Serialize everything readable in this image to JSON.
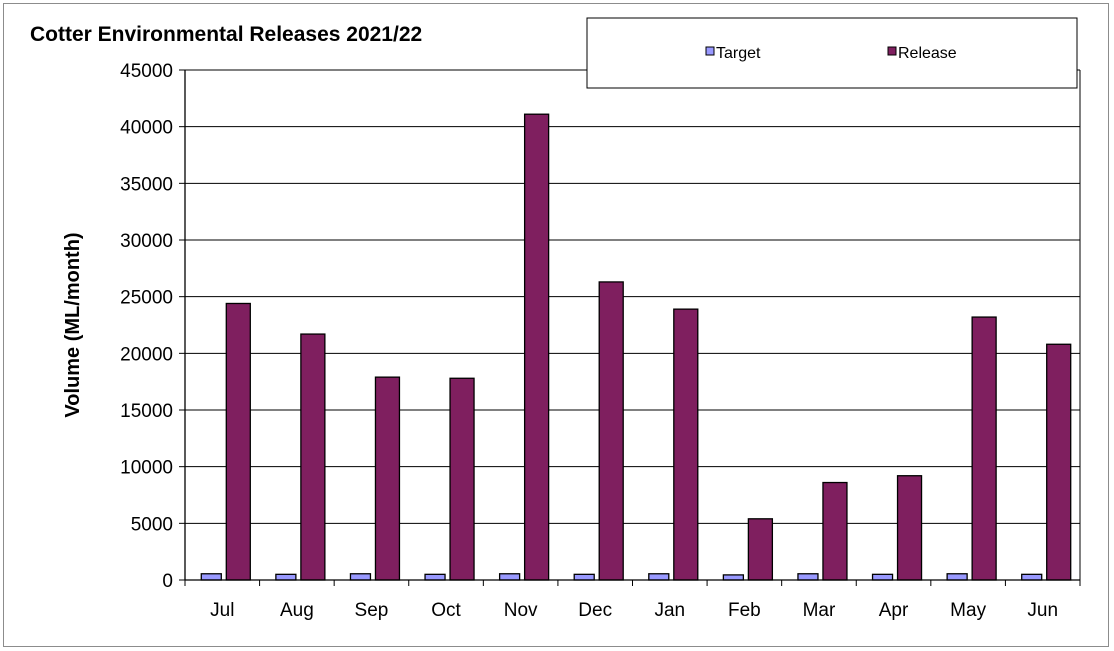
{
  "chart_data": {
    "type": "bar",
    "title": "Cotter Environmental Releases 2021/22",
    "xlabel": "",
    "ylabel": "Volume (ML/month)",
    "ylim": [
      0,
      45000
    ],
    "yticks": [
      0,
      5000,
      10000,
      15000,
      20000,
      25000,
      30000,
      35000,
      40000,
      45000
    ],
    "grid": true,
    "legend_position": "top-right",
    "categories": [
      "Jul",
      "Aug",
      "Sep",
      "Oct",
      "Nov",
      "Dec",
      "Jan",
      "Feb",
      "Mar",
      "Apr",
      "May",
      "Jun"
    ],
    "series": [
      {
        "name": "Target",
        "color": "#9999ff",
        "values": [
          550,
          500,
          550,
          500,
          550,
          500,
          550,
          450,
          550,
          500,
          550,
          500
        ]
      },
      {
        "name": "Release",
        "color": "#7f1f5f",
        "values": [
          24400,
          21700,
          17900,
          17800,
          41100,
          26300,
          23900,
          5400,
          8600,
          9200,
          23200,
          20800
        ]
      }
    ]
  }
}
